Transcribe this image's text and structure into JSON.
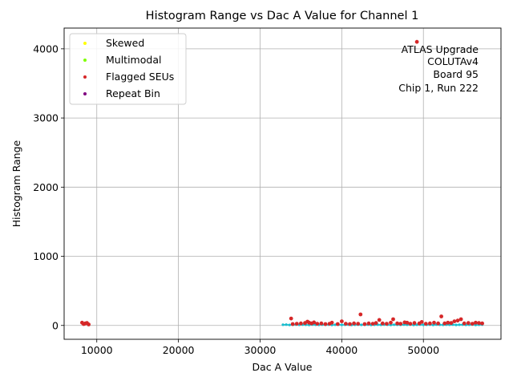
{
  "chart_data": {
    "type": "scatter",
    "title": "Histogram Range vs Dac A Value for Channel 1",
    "xlabel": "Dac A Value",
    "ylabel": "Histogram Range",
    "xlim": [
      6000,
      59500
    ],
    "ylim": [
      -200,
      4300
    ],
    "xticks": [
      10000,
      20000,
      30000,
      40000,
      50000
    ],
    "yticks": [
      0,
      1000,
      2000,
      3000,
      4000
    ],
    "grid": true,
    "legend_position": "top-left",
    "annotation": [
      "ATLAS Upgrade",
      "COLUTAv4",
      "Board 95",
      "Chip 1, Run 222"
    ],
    "series": [
      {
        "name": "Skewed",
        "color": "#ffff00",
        "x": [],
        "y": []
      },
      {
        "name": "Multimodal",
        "color": "#7fff00",
        "x": [],
        "y": []
      },
      {
        "name": "Flagged SEUs",
        "color": "#d62728",
        "x": [
          8200,
          8400,
          8600,
          8800,
          9000,
          33800,
          34000,
          34500,
          35000,
          35500,
          35800,
          36000,
          36300,
          36600,
          37000,
          37500,
          38000,
          38500,
          38800,
          39500,
          40000,
          40500,
          41000,
          41500,
          42000,
          42300,
          42800,
          43300,
          43800,
          44200,
          44600,
          45000,
          45500,
          46000,
          46300,
          46800,
          47200,
          47700,
          48000,
          48400,
          48900,
          49200,
          49500,
          49800,
          50300,
          50800,
          51300,
          51800,
          52200,
          52600,
          53000,
          53400,
          53800,
          54200,
          54600,
          55000,
          55500,
          56000,
          56400,
          56800,
          57200
        ],
        "y": [
          40,
          20,
          30,
          35,
          15,
          100,
          20,
          25,
          30,
          35,
          55,
          40,
          30,
          45,
          25,
          30,
          20,
          25,
          40,
          20,
          60,
          25,
          20,
          30,
          25,
          160,
          20,
          30,
          25,
          35,
          80,
          30,
          25,
          40,
          90,
          30,
          25,
          45,
          40,
          25,
          35,
          4100,
          30,
          50,
          25,
          30,
          40,
          30,
          130,
          30,
          40,
          35,
          60,
          70,
          90,
          30,
          35,
          25,
          40,
          35,
          30
        ]
      },
      {
        "name": "Repeat Bin",
        "color": "#800080",
        "x": [],
        "y": []
      },
      {
        "name": "",
        "color": "#17becf",
        "x": [
          32800,
          33200,
          33600,
          34000,
          34400,
          34800,
          35200,
          35600,
          36000,
          36400,
          36800,
          37200,
          37600,
          38000,
          38400,
          38800,
          39200,
          39600,
          40000,
          40400,
          40800,
          41200,
          41600,
          42000,
          42400,
          42800,
          43200,
          43600,
          44000,
          44400,
          44800,
          45200,
          45600,
          46000,
          46400,
          46800,
          47200,
          47600,
          48000,
          48400,
          48800,
          49200,
          49600,
          50000,
          50400,
          50800,
          51200,
          51600,
          52000,
          52400,
          52800,
          53200,
          53600,
          54000,
          54400,
          54800,
          55200,
          55600,
          56000,
          56400,
          56800,
          57200
        ],
        "y": [
          10,
          12,
          8,
          10,
          12,
          9,
          11,
          10,
          8,
          12,
          10,
          9,
          11,
          10,
          12,
          8,
          10,
          11,
          9,
          10,
          12,
          8,
          10,
          11,
          9,
          10,
          12,
          8,
          10,
          11,
          9,
          12,
          10,
          8,
          11,
          10,
          9,
          12,
          10,
          11,
          8,
          10,
          12,
          9,
          10,
          11,
          8,
          12,
          10,
          9,
          11,
          10,
          12,
          8,
          10,
          11,
          9,
          10,
          12,
          8,
          10,
          11
        ]
      }
    ]
  }
}
